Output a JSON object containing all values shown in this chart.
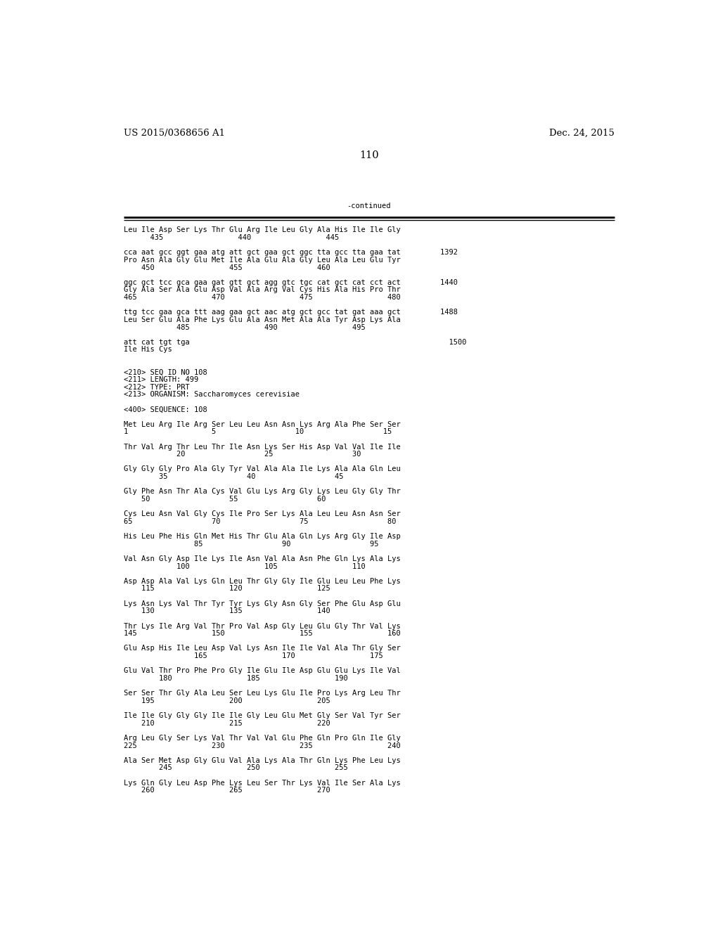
{
  "header_left": "US 2015/0368656 A1",
  "header_right": "Dec. 24, 2015",
  "page_number": "110",
  "continued_label": "-continued",
  "bg_color": "#ffffff",
  "text_color": "#000000",
  "font_size": 7.5,
  "header_font_size": 9.5,
  "content_lines": [
    "Leu Ile Asp Ser Lys Thr Glu Arg Ile Leu Gly Ala His Ile Ile Gly",
    "      435                 440                 445",
    "",
    "cca aat gcc ggt gaa atg att gct gaa gct ggc tta gcc tta gaa tat         1392",
    "Pro Asn Ala Gly Glu Met Ile Ala Glu Ala Gly Leu Ala Leu Glu Tyr",
    "    450                 455                 460",
    "",
    "ggc gct tcc gca gaa gat gtt gct agg gtc tgc cat gct cat cct act         1440",
    "Gly Ala Ser Ala Glu Asp Val Ala Arg Val Cys His Ala His Pro Thr",
    "465                 470                 475                 480",
    "",
    "ttg tcc gaa gca ttt aag gaa gct aac atg gct gcc tat gat aaa gct         1488",
    "Leu Ser Glu Ala Phe Lys Glu Ala Asn Met Ala Ala Tyr Asp Lys Ala",
    "            485                 490                 495",
    "",
    "att cat tgt tga                                                           1500",
    "Ile His Cys",
    "",
    "",
    "<210> SEQ ID NO 108",
    "<211> LENGTH: 499",
    "<212> TYPE: PRT",
    "<213> ORGANISM: Saccharomyces cerevisiae",
    "",
    "<400> SEQUENCE: 108",
    "",
    "Met Leu Arg Ile Arg Ser Leu Leu Asn Asn Lys Arg Ala Phe Ser Ser",
    "1                   5                  10                  15",
    "",
    "Thr Val Arg Thr Leu Thr Ile Asn Lys Ser His Asp Val Val Ile Ile",
    "            20                  25                  30",
    "",
    "Gly Gly Gly Pro Ala Gly Tyr Val Ala Ala Ile Lys Ala Ala Gln Leu",
    "        35                  40                  45",
    "",
    "Gly Phe Asn Thr Ala Cys Val Glu Lys Arg Gly Lys Leu Gly Gly Thr",
    "    50                  55                  60",
    "",
    "Cys Leu Asn Val Gly Cys Ile Pro Ser Lys Ala Leu Leu Asn Asn Ser",
    "65                  70                  75                  80",
    "",
    "His Leu Phe His Gln Met His Thr Glu Ala Gln Lys Arg Gly Ile Asp",
    "                85                  90                  95",
    "",
    "Val Asn Gly Asp Ile Lys Ile Asn Val Ala Asn Phe Gln Lys Ala Lys",
    "            100                 105                 110",
    "",
    "Asp Asp Ala Val Lys Gln Leu Thr Gly Gly Ile Glu Leu Leu Phe Lys",
    "    115                 120                 125",
    "",
    "Lys Asn Lys Val Thr Tyr Tyr Lys Gly Asn Gly Ser Phe Glu Asp Glu",
    "    130                 135                 140",
    "",
    "Thr Lys Ile Arg Val Thr Pro Val Asp Gly Leu Glu Gly Thr Val Lys",
    "145                 150                 155                 160",
    "",
    "Glu Asp His Ile Leu Asp Val Lys Asn Ile Ile Val Ala Thr Gly Ser",
    "                165                 170                 175",
    "",
    "Glu Val Thr Pro Phe Pro Gly Ile Glu Ile Asp Glu Glu Lys Ile Val",
    "        180                 185                 190",
    "",
    "Ser Ser Thr Gly Ala Leu Ser Leu Lys Glu Ile Pro Lys Arg Leu Thr",
    "    195                 200                 205",
    "",
    "Ile Ile Gly Gly Gly Ile Ile Gly Leu Glu Met Gly Ser Val Tyr Ser",
    "    210                 215                 220",
    "",
    "Arg Leu Gly Ser Lys Val Thr Val Val Glu Phe Gln Pro Gln Ile Gly",
    "225                 230                 235                 240",
    "",
    "Ala Ser Met Asp Gly Glu Val Ala Lys Ala Thr Gln Lys Phe Leu Lys",
    "        245                 250                 255",
    "",
    "Lys Gln Gly Leu Asp Phe Lys Leu Ser Thr Lys Val Ile Ser Ala Lys",
    "    260                 265                 270"
  ]
}
